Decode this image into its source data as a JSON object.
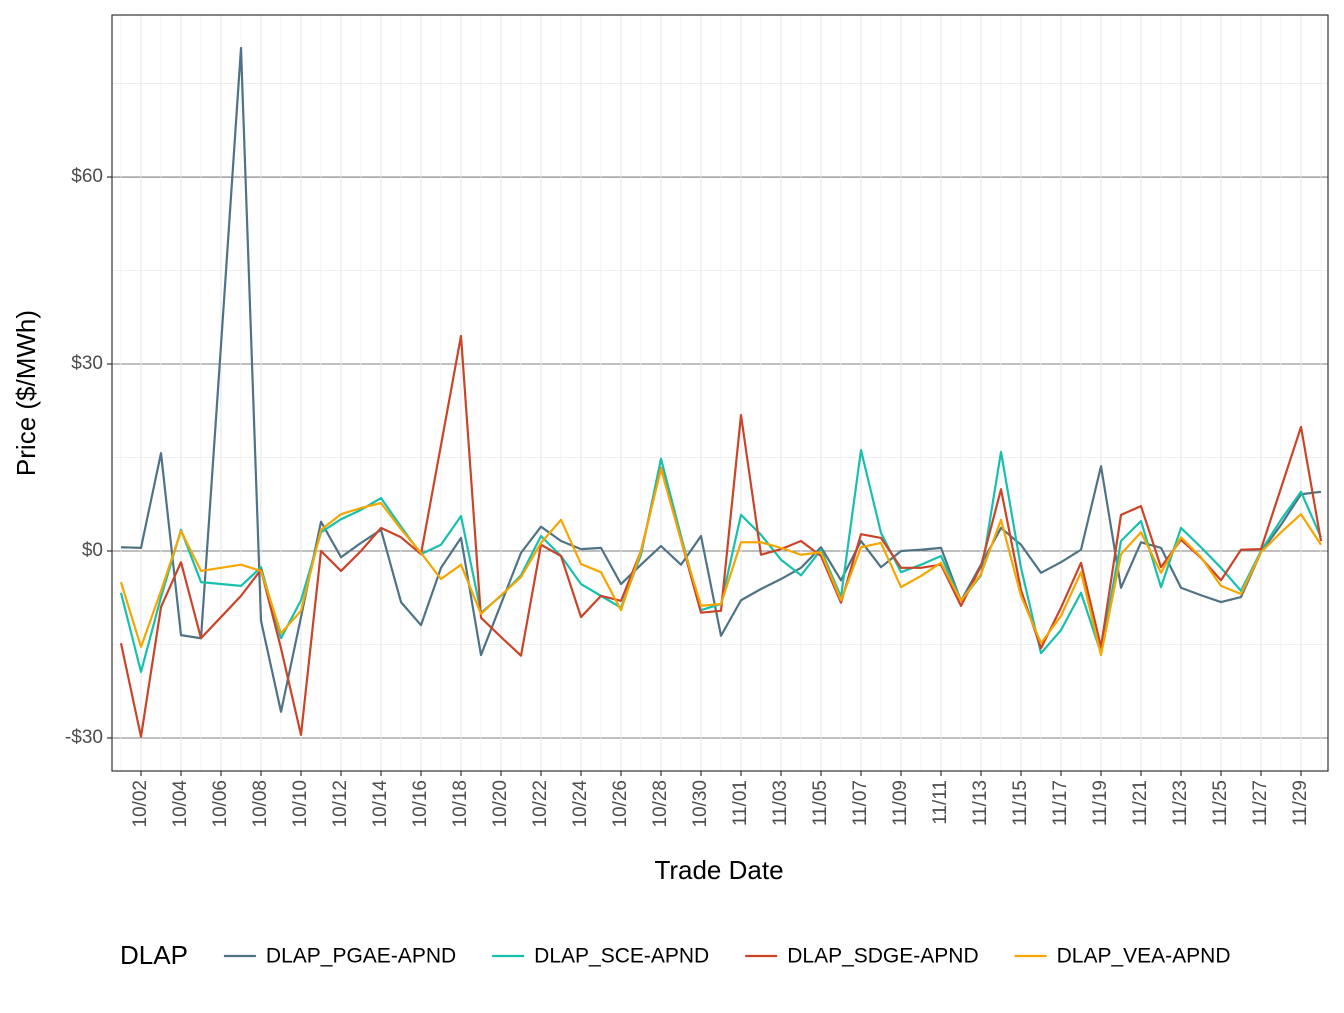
{
  "chart_data": {
    "type": "line",
    "x_label": "Trade Date",
    "y_label": "Price ($/MWh)",
    "legend_title": "DLAP",
    "legend_position": "bottom",
    "grid": true,
    "categories": [
      null,
      "10/02",
      null,
      "10/04",
      null,
      "10/06",
      null,
      "10/08",
      null,
      "10/10",
      null,
      "10/12",
      null,
      "10/14",
      null,
      "10/16",
      null,
      "10/18",
      null,
      "10/20",
      null,
      "10/22",
      null,
      "10/24",
      null,
      "10/26",
      null,
      "10/28",
      null,
      "10/30",
      null,
      "11/01",
      null,
      "11/03",
      null,
      "11/05",
      null,
      "11/07",
      null,
      "11/09",
      null,
      "11/11",
      null,
      "11/13",
      null,
      "11/15",
      null,
      "11/17",
      null,
      "11/19",
      null,
      "11/21",
      null,
      "11/23",
      null,
      "11/25",
      null,
      "11/27",
      null,
      "11/29",
      null
    ],
    "ylim": [
      -35.3,
      86
    ],
    "yticks": [
      {
        "value": -30,
        "label": "-$30"
      },
      {
        "value": 0,
        "label": "$0"
      },
      {
        "value": 30,
        "label": "$30"
      },
      {
        "value": 60,
        "label": "$60"
      }
    ],
    "series": [
      {
        "name": "DLAP_PGAE-APND",
        "color": "#4f7384",
        "values": [
          0.6,
          0.5,
          15.7,
          -13.5,
          -14,
          33,
          80.7,
          -11.2,
          -25.8,
          -10.6,
          4.7,
          -1,
          1.3,
          3.4,
          -8.2,
          -11.9,
          -2.7,
          2.1,
          -16.7,
          -8.5,
          -0.3,
          3.9,
          1.6,
          0.3,
          0.5,
          -5.3,
          -2.2,
          0.8,
          -2.2,
          2.4,
          -13.6,
          -7.9,
          -6.1,
          -4.5,
          -2.7,
          0.6,
          -4.7,
          1.6,
          -2.6,
          0,
          0.2,
          0.5,
          -8,
          -2.2,
          3.7,
          1,
          -3.5,
          -1.8,
          0.2,
          13.6,
          -5.9,
          1.4,
          0.5,
          -5.9,
          -7.1,
          -8.2,
          -7.4,
          -0.2,
          4.2,
          9.1,
          9.5
        ]
      },
      {
        "name": "DLAP_SCE-APND",
        "color": "#17c0ad",
        "values": [
          -6.7,
          -19.4,
          -7.4,
          3.4,
          -5,
          -5.3,
          -5.6,
          -2.6,
          -14,
          -7.9,
          3,
          5.1,
          6.6,
          8.5,
          3.9,
          -0.5,
          1,
          5.6,
          -9.9,
          -7.2,
          -3.9,
          2.4,
          -0.8,
          -5.3,
          -7.2,
          -9.1,
          -0.6,
          14.8,
          2.4,
          -9.5,
          -8.5,
          5.8,
          2.6,
          -1.4,
          -3.9,
          0.2,
          -7.4,
          16.2,
          2.9,
          -3.4,
          -2.2,
          -0.8,
          -8,
          -3.9,
          15.9,
          -2.7,
          -16.4,
          -12.7,
          -6.7,
          -16.4,
          1.6,
          4.8,
          -5.8,
          3.7,
          0.6,
          -2.7,
          -6.4,
          0,
          5,
          9.5,
          2.2
        ]
      },
      {
        "name": "DLAP_SDGE-APND",
        "color": "#c94429",
        "values": [
          -14.8,
          -29.8,
          -9,
          -1.8,
          -14,
          -10.6,
          -7.2,
          -3,
          -15.6,
          -29.5,
          0,
          -3.2,
          0,
          3.7,
          2.2,
          -0.5,
          17,
          34.5,
          -10.7,
          -13.8,
          -16.8,
          1,
          -0.8,
          -10.6,
          -7.2,
          -8,
          0,
          13.3,
          1.8,
          -9.9,
          -9.6,
          21.8,
          -0.6,
          0.3,
          1.6,
          -0.8,
          -8.3,
          2.7,
          2.1,
          -2.7,
          -2.7,
          -2.2,
          -8.8,
          -2.4,
          9.9,
          -6.3,
          -15.6,
          -9.1,
          -1.9,
          -15.4,
          5.8,
          7.2,
          -2.6,
          1.8,
          -1.1,
          -4.7,
          0.2,
          0.3,
          10.1,
          19.9,
          1.6
        ]
      },
      {
        "name": "DLAP_VEA-APND",
        "color": "#f5a600",
        "values": [
          -5,
          -15.4,
          -6.4,
          3.2,
          -3.2,
          -2.7,
          -2.2,
          -3.2,
          -13.2,
          -9.6,
          3.4,
          5.9,
          6.9,
          7.7,
          3.5,
          -0.3,
          -4.5,
          -2.2,
          -10.1,
          -7.1,
          -4.2,
          1.3,
          5,
          -2.1,
          -3.4,
          -9.5,
          0,
          13.2,
          1.8,
          -8.8,
          -8.5,
          1.4,
          1.4,
          0.5,
          -0.6,
          -0.2,
          -7.9,
          0.6,
          1.3,
          -5.8,
          -4,
          -1.9,
          -8,
          -3.7,
          5,
          -7.2,
          -14.8,
          -10.4,
          -3.4,
          -16.7,
          -0.5,
          3,
          -3.5,
          2.2,
          -1,
          -5.6,
          -6.9,
          -0.2,
          3,
          5.9,
          1
        ]
      }
    ]
  }
}
